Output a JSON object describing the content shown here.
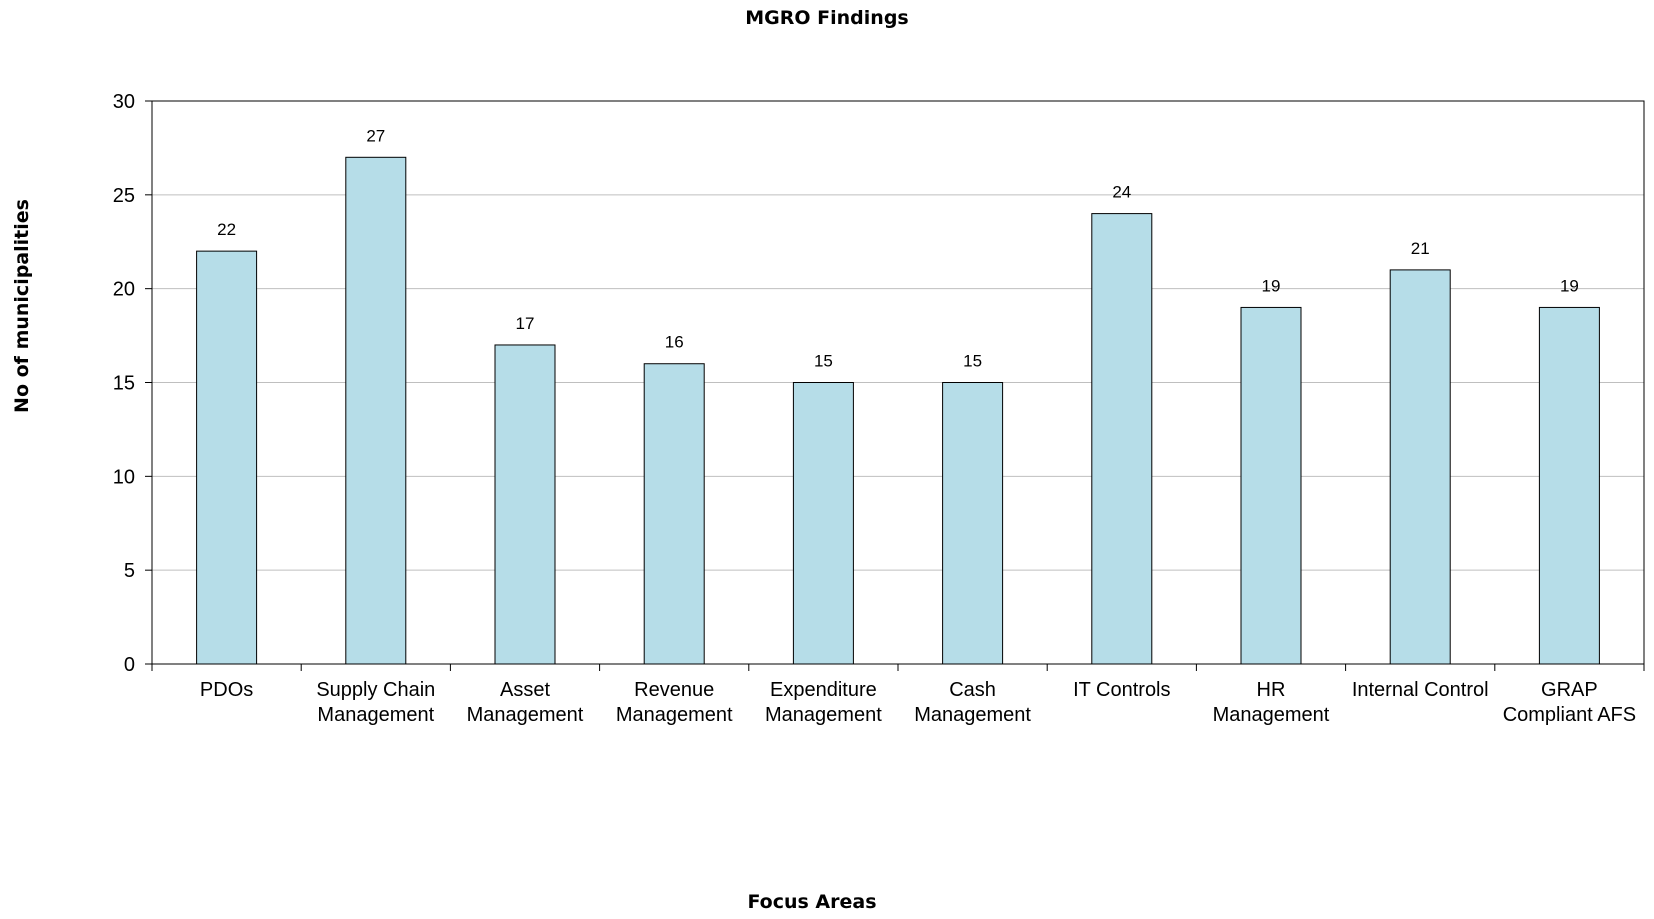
{
  "chart_data": {
    "type": "bar",
    "title": "MGRO Findings",
    "xlabel": "Focus Areas",
    "ylabel": "No of  municipalities",
    "categories": [
      "PDOs",
      "Supply Chain Management",
      "Asset Management",
      "Revenue Management",
      "Expenditure Management",
      "Cash Management",
      "IT Controls",
      "HR Management",
      "Internal Control",
      "GRAP Compliant AFS"
    ],
    "category_lines": [
      [
        "PDOs"
      ],
      [
        "Supply Chain",
        "Management"
      ],
      [
        "Asset",
        "Management"
      ],
      [
        "Revenue",
        "Management"
      ],
      [
        "Expenditure",
        "Management"
      ],
      [
        "Cash",
        "Management"
      ],
      [
        "IT Controls"
      ],
      [
        "HR",
        "Management"
      ],
      [
        "Internal Control"
      ],
      [
        "GRAP",
        "Compliant AFS"
      ]
    ],
    "values": [
      22,
      27,
      17,
      16,
      15,
      15,
      24,
      19,
      21,
      19
    ],
    "ylim": [
      0,
      30
    ],
    "yticks": [
      0,
      5,
      10,
      15,
      20,
      25,
      30
    ],
    "grid": true,
    "legend": "none",
    "colors": {
      "bar_fill": "#b6dde8",
      "bar_stroke": "#000000",
      "grid": "#bfbfbf",
      "axis": "#000000"
    }
  }
}
